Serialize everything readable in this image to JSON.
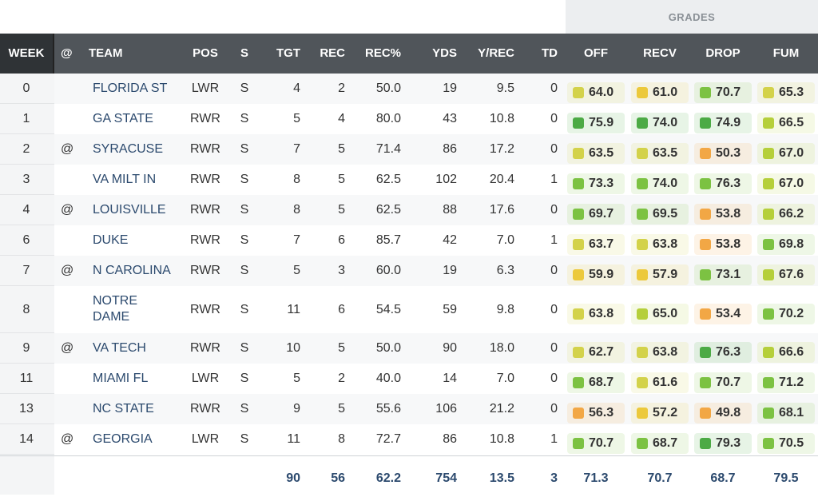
{
  "header": {
    "grades_label": "GRADES",
    "columns": {
      "week": "WEEK",
      "at": "@",
      "team": "TEAM",
      "pos": "POS",
      "s": "S",
      "tgt": "TGT",
      "rec": "REC",
      "recp": "REC%",
      "yds": "YDS",
      "yrec": "Y/REC",
      "td": "TD",
      "off": "OFF",
      "recv": "RECV",
      "drop": "DROP",
      "fum": "FUM"
    }
  },
  "grade_colors": {
    "dark_green": "#4caa45",
    "green": "#7cc242",
    "lime": "#b5cf3a",
    "yellow_green": "#d3d24a",
    "yellow": "#ecc93c",
    "orange": "#f2a745"
  },
  "rows": [
    {
      "week": "0",
      "at": "",
      "team": "FLORIDA ST",
      "pos": "LWR",
      "s": "S",
      "tgt": "4",
      "rec": "2",
      "recp": "50.0",
      "yds": "19",
      "yrec": "9.5",
      "td": "0",
      "off": {
        "v": "64.0",
        "c": "yellow_green"
      },
      "recv": {
        "v": "61.0",
        "c": "yellow"
      },
      "drop": {
        "v": "70.7",
        "c": "green"
      },
      "fum": {
        "v": "65.3",
        "c": "yellow_green"
      }
    },
    {
      "week": "1",
      "at": "",
      "team": "GA STATE",
      "pos": "RWR",
      "s": "S",
      "tgt": "5",
      "rec": "4",
      "recp": "80.0",
      "yds": "43",
      "yrec": "10.8",
      "td": "0",
      "off": {
        "v": "75.9",
        "c": "dark_green"
      },
      "recv": {
        "v": "74.0",
        "c": "dark_green"
      },
      "drop": {
        "v": "74.9",
        "c": "dark_green"
      },
      "fum": {
        "v": "66.5",
        "c": "lime"
      }
    },
    {
      "week": "2",
      "at": "@",
      "team": "SYRACUSE",
      "pos": "RWR",
      "s": "S",
      "tgt": "7",
      "rec": "5",
      "recp": "71.4",
      "yds": "86",
      "yrec": "17.2",
      "td": "0",
      "off": {
        "v": "63.5",
        "c": "yellow_green"
      },
      "recv": {
        "v": "63.5",
        "c": "yellow_green"
      },
      "drop": {
        "v": "50.3",
        "c": "orange"
      },
      "fum": {
        "v": "67.0",
        "c": "lime"
      }
    },
    {
      "week": "3",
      "at": "",
      "team": "VA MILT IN",
      "pos": "RWR",
      "s": "S",
      "tgt": "8",
      "rec": "5",
      "recp": "62.5",
      "yds": "102",
      "yrec": "20.4",
      "td": "1",
      "off": {
        "v": "73.3",
        "c": "green"
      },
      "recv": {
        "v": "74.0",
        "c": "green"
      },
      "drop": {
        "v": "76.3",
        "c": "green"
      },
      "fum": {
        "v": "67.0",
        "c": "lime"
      }
    },
    {
      "week": "4",
      "at": "@",
      "team": "LOUISVILLE",
      "pos": "RWR",
      "s": "S",
      "tgt": "8",
      "rec": "5",
      "recp": "62.5",
      "yds": "88",
      "yrec": "17.6",
      "td": "0",
      "off": {
        "v": "69.7",
        "c": "green"
      },
      "recv": {
        "v": "69.5",
        "c": "green"
      },
      "drop": {
        "v": "53.8",
        "c": "orange"
      },
      "fum": {
        "v": "66.2",
        "c": "lime"
      }
    },
    {
      "week": "6",
      "at": "",
      "team": "DUKE",
      "pos": "RWR",
      "s": "S",
      "tgt": "7",
      "rec": "6",
      "recp": "85.7",
      "yds": "42",
      "yrec": "7.0",
      "td": "1",
      "off": {
        "v": "63.7",
        "c": "yellow_green"
      },
      "recv": {
        "v": "63.8",
        "c": "yellow_green"
      },
      "drop": {
        "v": "53.8",
        "c": "orange"
      },
      "fum": {
        "v": "69.8",
        "c": "green"
      }
    },
    {
      "week": "7",
      "at": "@",
      "team": "N CAROLINA",
      "pos": "RWR",
      "s": "S",
      "tgt": "5",
      "rec": "3",
      "recp": "60.0",
      "yds": "19",
      "yrec": "6.3",
      "td": "0",
      "off": {
        "v": "59.9",
        "c": "yellow"
      },
      "recv": {
        "v": "57.9",
        "c": "yellow"
      },
      "drop": {
        "v": "73.1",
        "c": "green"
      },
      "fum": {
        "v": "67.6",
        "c": "lime"
      }
    },
    {
      "week": "8",
      "at": "",
      "team": "NOTRE DAME",
      "pos": "RWR",
      "s": "S",
      "tgt": "11",
      "rec": "6",
      "recp": "54.5",
      "yds": "59",
      "yrec": "9.8",
      "td": "0",
      "off": {
        "v": "63.8",
        "c": "yellow_green"
      },
      "recv": {
        "v": "65.0",
        "c": "lime"
      },
      "drop": {
        "v": "53.4",
        "c": "orange"
      },
      "fum": {
        "v": "70.2",
        "c": "green"
      }
    },
    {
      "week": "9",
      "at": "@",
      "team": "VA TECH",
      "pos": "RWR",
      "s": "S",
      "tgt": "10",
      "rec": "5",
      "recp": "50.0",
      "yds": "90",
      "yrec": "18.0",
      "td": "0",
      "off": {
        "v": "62.7",
        "c": "yellow_green"
      },
      "recv": {
        "v": "63.8",
        "c": "yellow_green"
      },
      "drop": {
        "v": "76.3",
        "c": "dark_green"
      },
      "fum": {
        "v": "66.6",
        "c": "lime"
      }
    },
    {
      "week": "11",
      "at": "",
      "team": "MIAMI FL",
      "pos": "LWR",
      "s": "S",
      "tgt": "5",
      "rec": "2",
      "recp": "40.0",
      "yds": "14",
      "yrec": "7.0",
      "td": "0",
      "off": {
        "v": "68.7",
        "c": "green"
      },
      "recv": {
        "v": "61.6",
        "c": "yellow_green"
      },
      "drop": {
        "v": "70.7",
        "c": "green"
      },
      "fum": {
        "v": "71.2",
        "c": "green"
      }
    },
    {
      "week": "13",
      "at": "",
      "team": "NC STATE",
      "pos": "RWR",
      "s": "S",
      "tgt": "9",
      "rec": "5",
      "recp": "55.6",
      "yds": "106",
      "yrec": "21.2",
      "td": "0",
      "off": {
        "v": "56.3",
        "c": "orange"
      },
      "recv": {
        "v": "57.2",
        "c": "yellow"
      },
      "drop": {
        "v": "49.8",
        "c": "orange"
      },
      "fum": {
        "v": "68.1",
        "c": "green"
      }
    },
    {
      "week": "14",
      "at": "@",
      "team": "GEORGIA",
      "pos": "LWR",
      "s": "S",
      "tgt": "11",
      "rec": "8",
      "recp": "72.7",
      "yds": "86",
      "yrec": "10.8",
      "td": "1",
      "off": {
        "v": "70.7",
        "c": "green"
      },
      "recv": {
        "v": "68.7",
        "c": "green"
      },
      "drop": {
        "v": "79.3",
        "c": "dark_green"
      },
      "fum": {
        "v": "70.5",
        "c": "green"
      }
    }
  ],
  "totals": {
    "tgt": "90",
    "rec": "56",
    "recp": "62.2",
    "yds": "754",
    "yrec": "13.5",
    "td": "3",
    "off": "71.3",
    "recv": "70.7",
    "drop": "68.7",
    "fum": "79.5"
  }
}
